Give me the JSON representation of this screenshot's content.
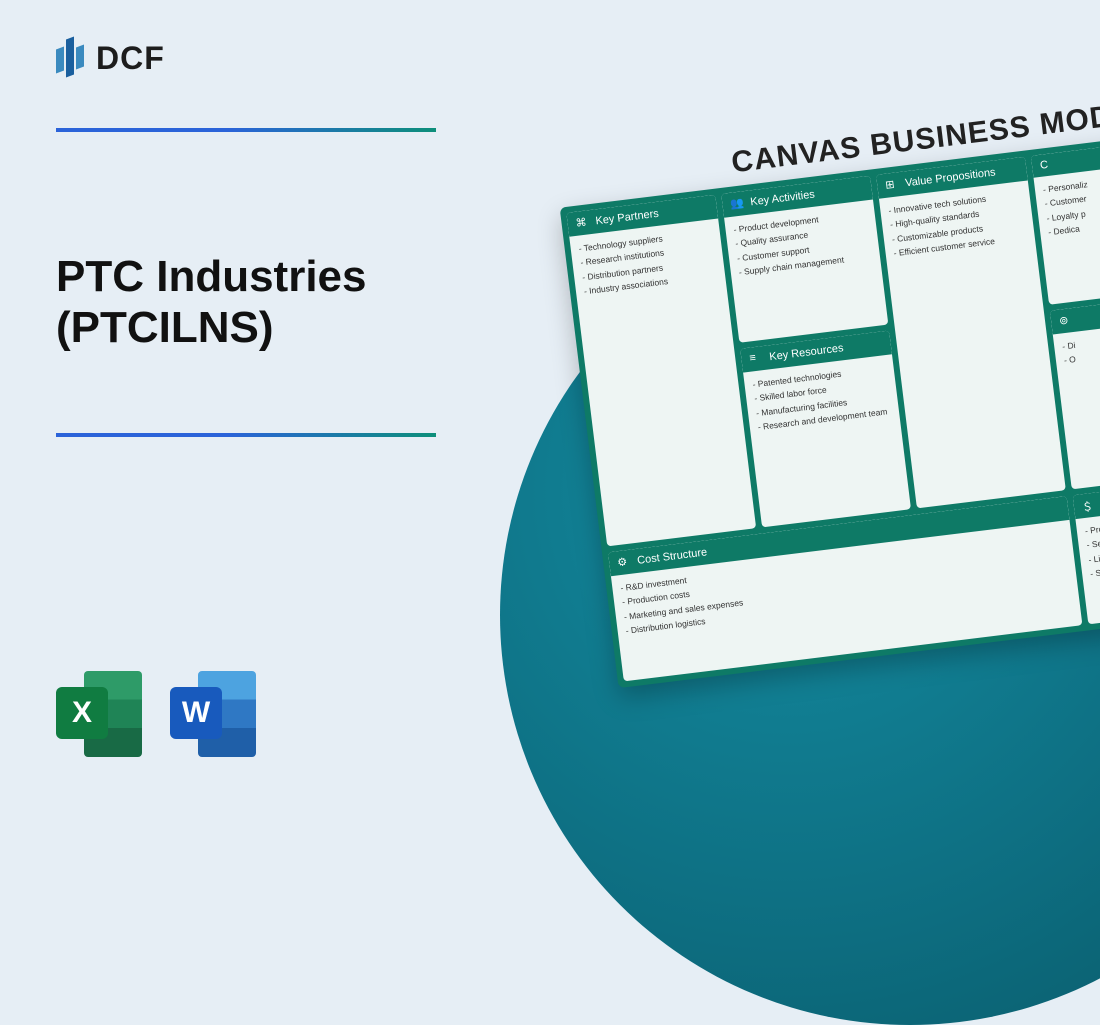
{
  "colors": {
    "page_bg": "#e6eef5",
    "divider_gradient_from": "#2b63d9",
    "divider_gradient_to": "#0d8f7a",
    "circle_bg": "#0d6d80",
    "canvas_border": "#0e7a66",
    "card_bg": "#eef5f3",
    "excel_badge": "#107c41",
    "word_badge": "#185abd"
  },
  "logo": {
    "text": "DCF"
  },
  "title": {
    "line1": "PTC Industries",
    "line2": "(PTCILNS)"
  },
  "file_icons": {
    "excel": "X",
    "word": "W"
  },
  "canvas": {
    "heading": "CANVAS BUSINESS MODEL",
    "cards": {
      "partners": {
        "title": "Key Partners",
        "items": [
          "Technology suppliers",
          "Research institutions",
          "Distribution partners",
          "Industry associations"
        ]
      },
      "activities": {
        "title": "Key Activities",
        "items": [
          "Product development",
          "Quality assurance",
          "Customer support",
          "Supply chain management"
        ]
      },
      "resources": {
        "title": "Key Resources",
        "items": [
          "Patented technologies",
          "Skilled labor force",
          "Manufacturing facilities",
          "Research and development team"
        ]
      },
      "value": {
        "title": "Value Propositions",
        "items": [
          "Innovative tech solutions",
          "High-quality standards",
          "Customizable products",
          "Efficient customer service"
        ]
      },
      "extra1": {
        "title": "C",
        "items": [
          "Personaliz",
          "Customer",
          "Loyalty p",
          "Dedica"
        ]
      },
      "extra2": {
        "title": "",
        "items": [
          "Di",
          "O"
        ]
      },
      "cost": {
        "title": "Cost Structure",
        "items": [
          "R&D investment",
          "Production costs",
          "Marketing and sales expenses",
          "Distribution logistics"
        ]
      },
      "revenue": {
        "title": "Revenue S",
        "items": [
          "Product sales",
          "Service contracts",
          "Licensing agree",
          "Subscription m"
        ]
      }
    }
  }
}
